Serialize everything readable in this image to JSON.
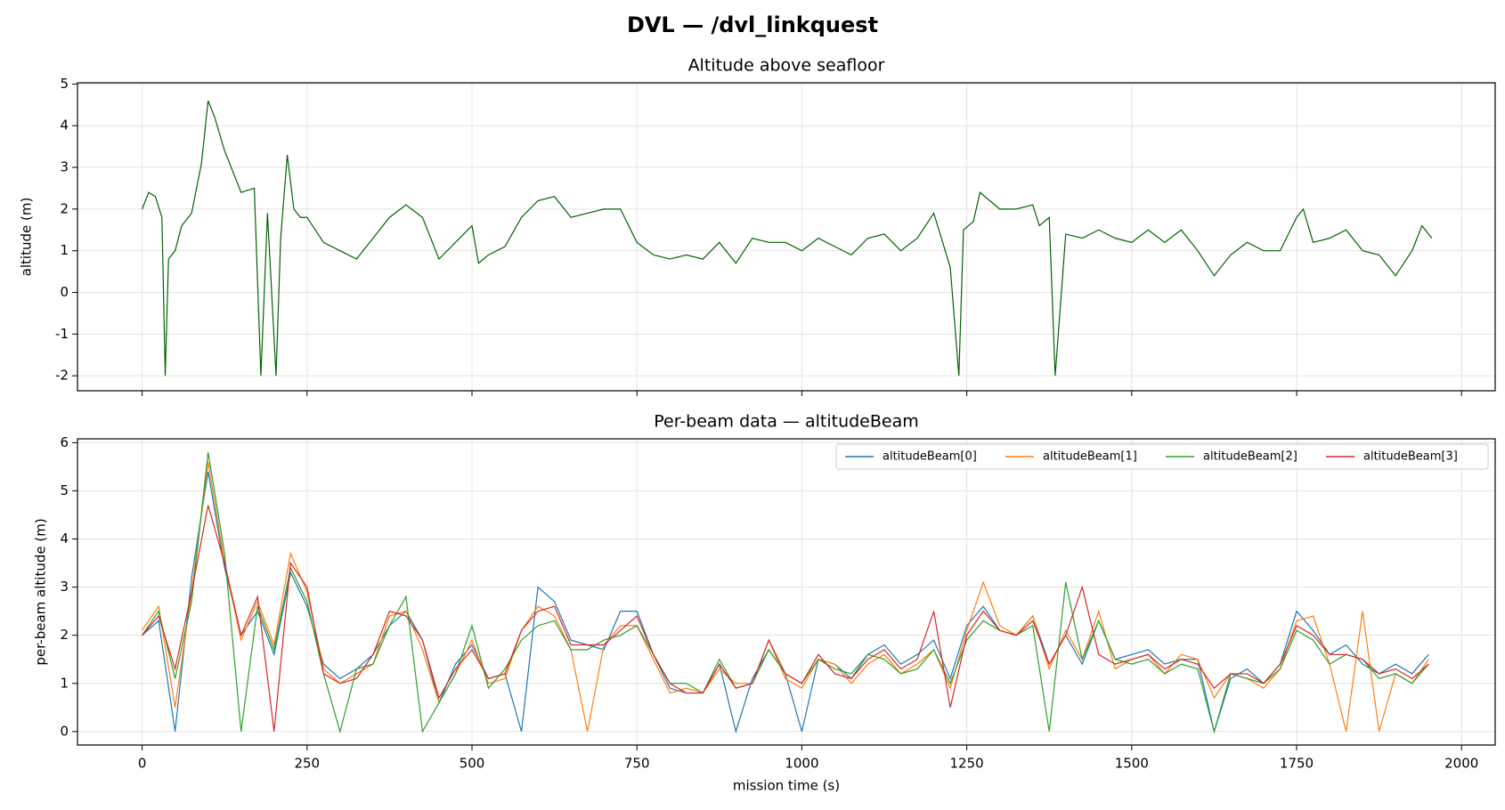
{
  "title": "DVL — /dvl_linkquest",
  "chart_data": [
    {
      "type": "line",
      "title": "Altitude above seafloor",
      "ylabel": "altitude (m)",
      "x": [
        0,
        10,
        20,
        30,
        35,
        40,
        50,
        60,
        75,
        90,
        100,
        110,
        125,
        150,
        170,
        180,
        190,
        203,
        210,
        220,
        230,
        240,
        250,
        275,
        300,
        325,
        350,
        375,
        400,
        425,
        450,
        475,
        500,
        510,
        525,
        550,
        575,
        600,
        625,
        650,
        675,
        700,
        725,
        750,
        775,
        800,
        825,
        850,
        875,
        900,
        925,
        950,
        975,
        1000,
        1025,
        1050,
        1075,
        1100,
        1125,
        1150,
        1175,
        1200,
        1225,
        1238,
        1245,
        1260,
        1270,
        1300,
        1325,
        1350,
        1360,
        1375,
        1384,
        1400,
        1425,
        1450,
        1475,
        1500,
        1525,
        1550,
        1575,
        1600,
        1625,
        1650,
        1675,
        1700,
        1725,
        1750,
        1760,
        1775,
        1800,
        1825,
        1850,
        1875,
        1900,
        1925,
        1940,
        1955
      ],
      "values": [
        2.0,
        2.4,
        2.3,
        1.8,
        -2,
        0.8,
        1.0,
        1.6,
        1.9,
        3.1,
        4.6,
        4.2,
        3.4,
        2.4,
        2.5,
        -2,
        1.9,
        -2,
        1.3,
        3.3,
        2.0,
        1.8,
        1.8,
        1.2,
        1.0,
        0.8,
        1.3,
        1.8,
        2.1,
        1.8,
        0.8,
        1.2,
        1.6,
        0.7,
        0.9,
        1.1,
        1.8,
        2.2,
        2.3,
        1.8,
        1.9,
        2.0,
        2.0,
        1.2,
        0.9,
        0.8,
        0.9,
        0.8,
        1.2,
        0.7,
        1.3,
        1.2,
        1.2,
        1.0,
        1.3,
        1.1,
        0.9,
        1.3,
        1.4,
        1.0,
        1.3,
        1.9,
        0.6,
        -2,
        1.5,
        1.7,
        2.4,
        2.0,
        2.0,
        2.1,
        1.6,
        1.8,
        -2,
        1.4,
        1.3,
        1.5,
        1.3,
        1.2,
        1.5,
        1.2,
        1.5,
        1.0,
        0.4,
        0.9,
        1.2,
        1.0,
        1.0,
        1.8,
        2.0,
        1.2,
        1.3,
        1.5,
        1.0,
        0.9,
        0.4,
        1.0,
        1.6,
        1.3
      ],
      "color": "#006400",
      "xlim": [
        -98,
        2051
      ],
      "ylim": [
        -2.36,
        5.03
      ],
      "yticks": [
        -2,
        -1,
        0,
        1,
        2,
        3,
        4,
        5
      ],
      "grid": true
    },
    {
      "type": "line",
      "title": "Per-beam data — altitudeBeam",
      "xlabel": "mission time (s)",
      "ylabel": "per-beam altitude (m)",
      "x": [
        0,
        25,
        50,
        75,
        100,
        125,
        150,
        175,
        200,
        225,
        250,
        275,
        300,
        325,
        350,
        375,
        400,
        425,
        450,
        475,
        500,
        525,
        550,
        575,
        600,
        625,
        650,
        675,
        700,
        725,
        750,
        775,
        800,
        825,
        850,
        875,
        900,
        925,
        950,
        975,
        1000,
        1025,
        1050,
        1075,
        1100,
        1125,
        1150,
        1175,
        1200,
        1225,
        1250,
        1275,
        1300,
        1325,
        1350,
        1375,
        1400,
        1425,
        1450,
        1475,
        1500,
        1525,
        1550,
        1575,
        1600,
        1625,
        1650,
        1675,
        1700,
        1725,
        1750,
        1775,
        1800,
        1825,
        1850,
        1875,
        1900,
        1925,
        1950
      ],
      "series": [
        {
          "name": "altitudeBeam[0]",
          "color": "#1f77b4",
          "values": [
            2.0,
            2.3,
            0,
            3.2,
            5.4,
            3.4,
            2.0,
            2.5,
            1.6,
            3.3,
            2.6,
            1.4,
            1.1,
            1.3,
            1.6,
            2.2,
            2.5,
            1.9,
            0.6,
            1.4,
            1.8,
            1.1,
            1.2,
            0,
            3.0,
            2.7,
            1.9,
            1.8,
            1.7,
            2.5,
            2.5,
            1.6,
            0.9,
            0.8,
            0.8,
            1.4,
            0,
            1.1,
            1.7,
            1.2,
            0,
            1.5,
            1.4,
            1.1,
            1.6,
            1.8,
            1.4,
            1.6,
            1.9,
            1.1,
            2.2,
            2.6,
            2.1,
            2.0,
            2.4,
            1.4,
            2.0,
            1.4,
            2.3,
            1.5,
            1.6,
            1.7,
            1.4,
            1.5,
            1.5,
            0,
            1.1,
            1.3,
            1.0,
            1.4,
            2.5,
            2.1,
            1.6,
            1.8,
            1.4,
            1.2,
            1.4,
            1.2,
            1.6
          ]
        },
        {
          "name": "altitudeBeam[1]",
          "color": "#ff7f0e",
          "values": [
            2.1,
            2.6,
            0.5,
            2.9,
            5.6,
            3.5,
            1.9,
            2.7,
            1.8,
            3.7,
            2.9,
            1.3,
            1.0,
            1.2,
            1.4,
            2.4,
            2.5,
            1.7,
            0.6,
            1.2,
            1.9,
            1.0,
            1.1,
            2.1,
            2.6,
            2.4,
            1.7,
            0,
            1.8,
            2.2,
            2.2,
            1.5,
            0.8,
            0.9,
            0.8,
            1.3,
            1.0,
            1.0,
            1.9,
            1.1,
            0.9,
            1.5,
            1.4,
            1.0,
            1.4,
            1.6,
            1.2,
            1.4,
            1.7,
            0.9,
            2.1,
            3.1,
            2.2,
            2.0,
            2.4,
            1.3,
            2.1,
            1.5,
            2.5,
            1.3,
            1.5,
            1.6,
            1.2,
            1.6,
            1.5,
            0.7,
            1.2,
            1.1,
            0.9,
            1.3,
            2.3,
            2.4,
            1.4,
            0,
            2.5,
            0,
            1.2,
            1.0,
            1.5
          ]
        },
        {
          "name": "altitudeBeam[2]",
          "color": "#2ca02c",
          "values": [
            2.0,
            2.5,
            1.1,
            2.7,
            5.8,
            3.7,
            0,
            2.6,
            1.7,
            3.4,
            2.7,
            1.2,
            0,
            1.3,
            1.4,
            2.2,
            2.8,
            0,
            0.6,
            1.2,
            2.2,
            0.9,
            1.3,
            1.9,
            2.2,
            2.3,
            1.7,
            1.7,
            1.9,
            2.0,
            2.2,
            1.6,
            1.0,
            1.0,
            0.8,
            1.5,
            0.9,
            1.0,
            1.7,
            1.2,
            1.0,
            1.5,
            1.3,
            1.2,
            1.6,
            1.5,
            1.2,
            1.3,
            1.7,
            1.0,
            1.9,
            2.3,
            2.1,
            2.0,
            2.2,
            0,
            3.1,
            1.5,
            2.3,
            1.5,
            1.4,
            1.5,
            1.2,
            1.4,
            1.3,
            0,
            1.2,
            1.1,
            1.0,
            1.3,
            2.1,
            1.9,
            1.4,
            1.6,
            1.5,
            1.1,
            1.2,
            1.0,
            1.4
          ]
        },
        {
          "name": "altitudeBeam[3]",
          "color": "#d62728",
          "values": [
            2.0,
            2.4,
            1.3,
            2.9,
            4.7,
            3.5,
            2.0,
            2.8,
            0,
            3.5,
            3.0,
            1.2,
            1.0,
            1.1,
            1.6,
            2.5,
            2.4,
            1.9,
            0.7,
            1.3,
            1.7,
            1.1,
            1.2,
            2.1,
            2.5,
            2.6,
            1.8,
            1.8,
            1.8,
            2.1,
            2.4,
            1.6,
            1.0,
            0.8,
            0.8,
            1.4,
            0.9,
            1.0,
            1.9,
            1.2,
            1.0,
            1.6,
            1.2,
            1.1,
            1.5,
            1.7,
            1.3,
            1.5,
            2.5,
            0.5,
            2.0,
            2.5,
            2.1,
            2.0,
            2.3,
            1.4,
            2.0,
            3.0,
            1.6,
            1.4,
            1.5,
            1.6,
            1.3,
            1.5,
            1.4,
            0.9,
            1.2,
            1.2,
            1.0,
            1.4,
            2.2,
            2.0,
            1.6,
            1.6,
            1.5,
            1.2,
            1.3,
            1.1,
            1.4
          ]
        }
      ],
      "xlim": [
        -98,
        2051
      ],
      "xticks": [
        0,
        250,
        500,
        750,
        1000,
        1250,
        1500,
        1750,
        2000
      ],
      "ylim": [
        -0.28,
        6.08
      ],
      "yticks": [
        0,
        1,
        2,
        3,
        4,
        5,
        6
      ],
      "grid": true,
      "legend": "upper right"
    }
  ]
}
